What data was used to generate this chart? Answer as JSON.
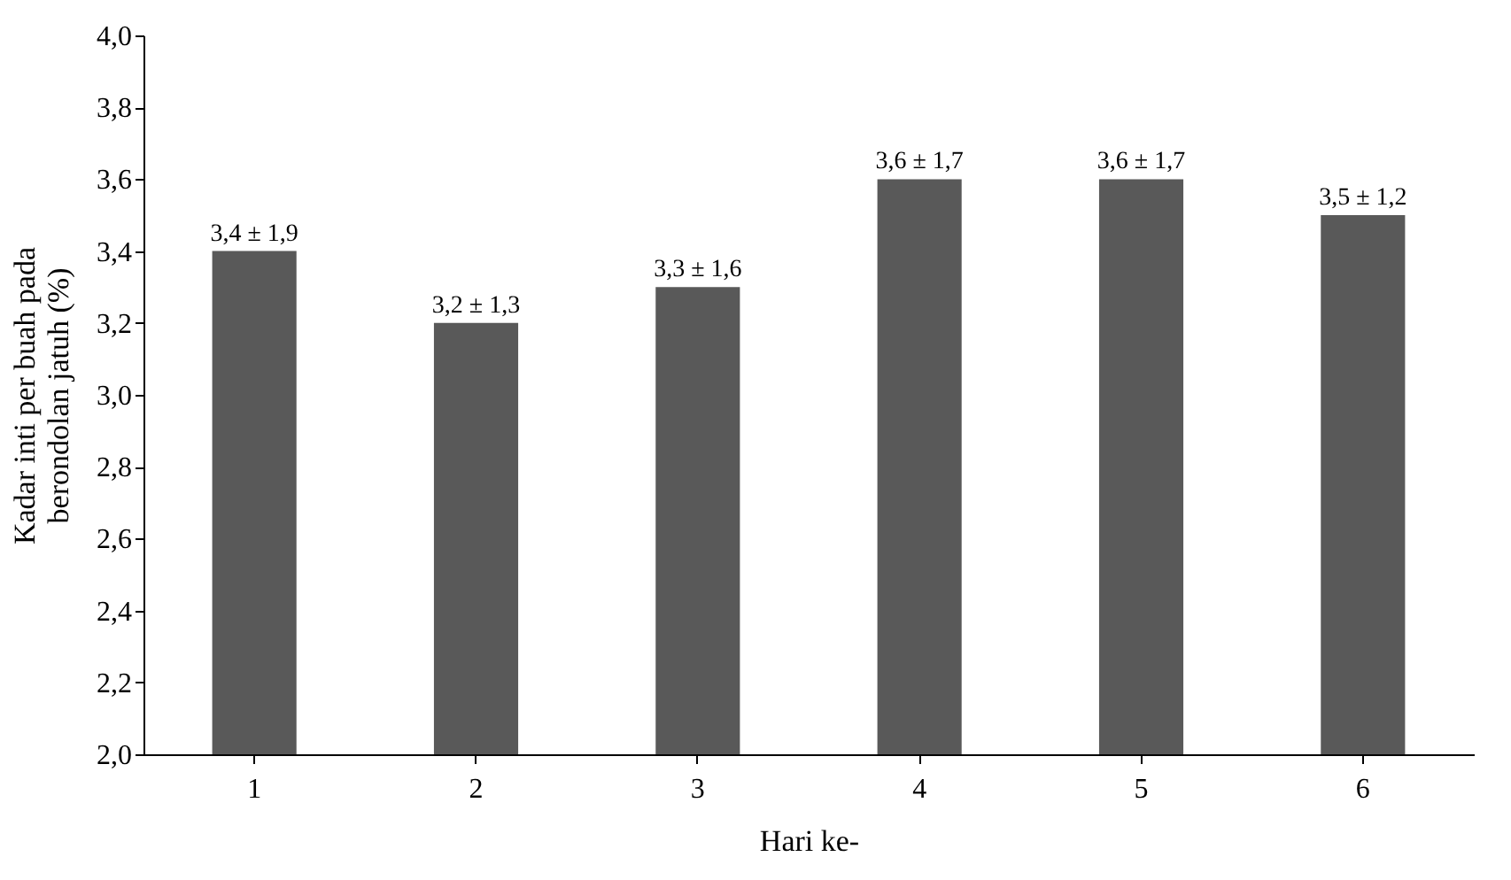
{
  "chart_data": {
    "type": "bar",
    "categories": [
      "1",
      "2",
      "3",
      "4",
      "5",
      "6"
    ],
    "values": [
      3.4,
      3.2,
      3.3,
      3.6,
      3.6,
      3.5
    ],
    "value_labels": [
      "3,4 ± 1,9",
      "3,2 ± 1,3",
      "3,3 ± 1,6",
      "3,6 ± 1,7",
      "3,6 ± 1,7",
      "3,5 ± 1,2"
    ],
    "color": "#595959",
    "xlabel": "Hari ke-",
    "ylabel": "Kadar inti per buah pada\nberondolan jatuh (%)",
    "ylim": [
      2.0,
      4.0
    ],
    "yticks": [
      {
        "value": 2.0,
        "label": "2,0"
      },
      {
        "value": 2.2,
        "label": "2,2"
      },
      {
        "value": 2.4,
        "label": "2,4"
      },
      {
        "value": 2.6,
        "label": "2,6"
      },
      {
        "value": 2.8,
        "label": "2,8"
      },
      {
        "value": 3.0,
        "label": "3,0"
      },
      {
        "value": 3.2,
        "label": "3,2"
      },
      {
        "value": 3.4,
        "label": "3,4"
      },
      {
        "value": 3.6,
        "label": "3,6"
      },
      {
        "value": 3.8,
        "label": "3,8"
      },
      {
        "value": 4.0,
        "label": "4,0"
      }
    ],
    "grid": false
  }
}
